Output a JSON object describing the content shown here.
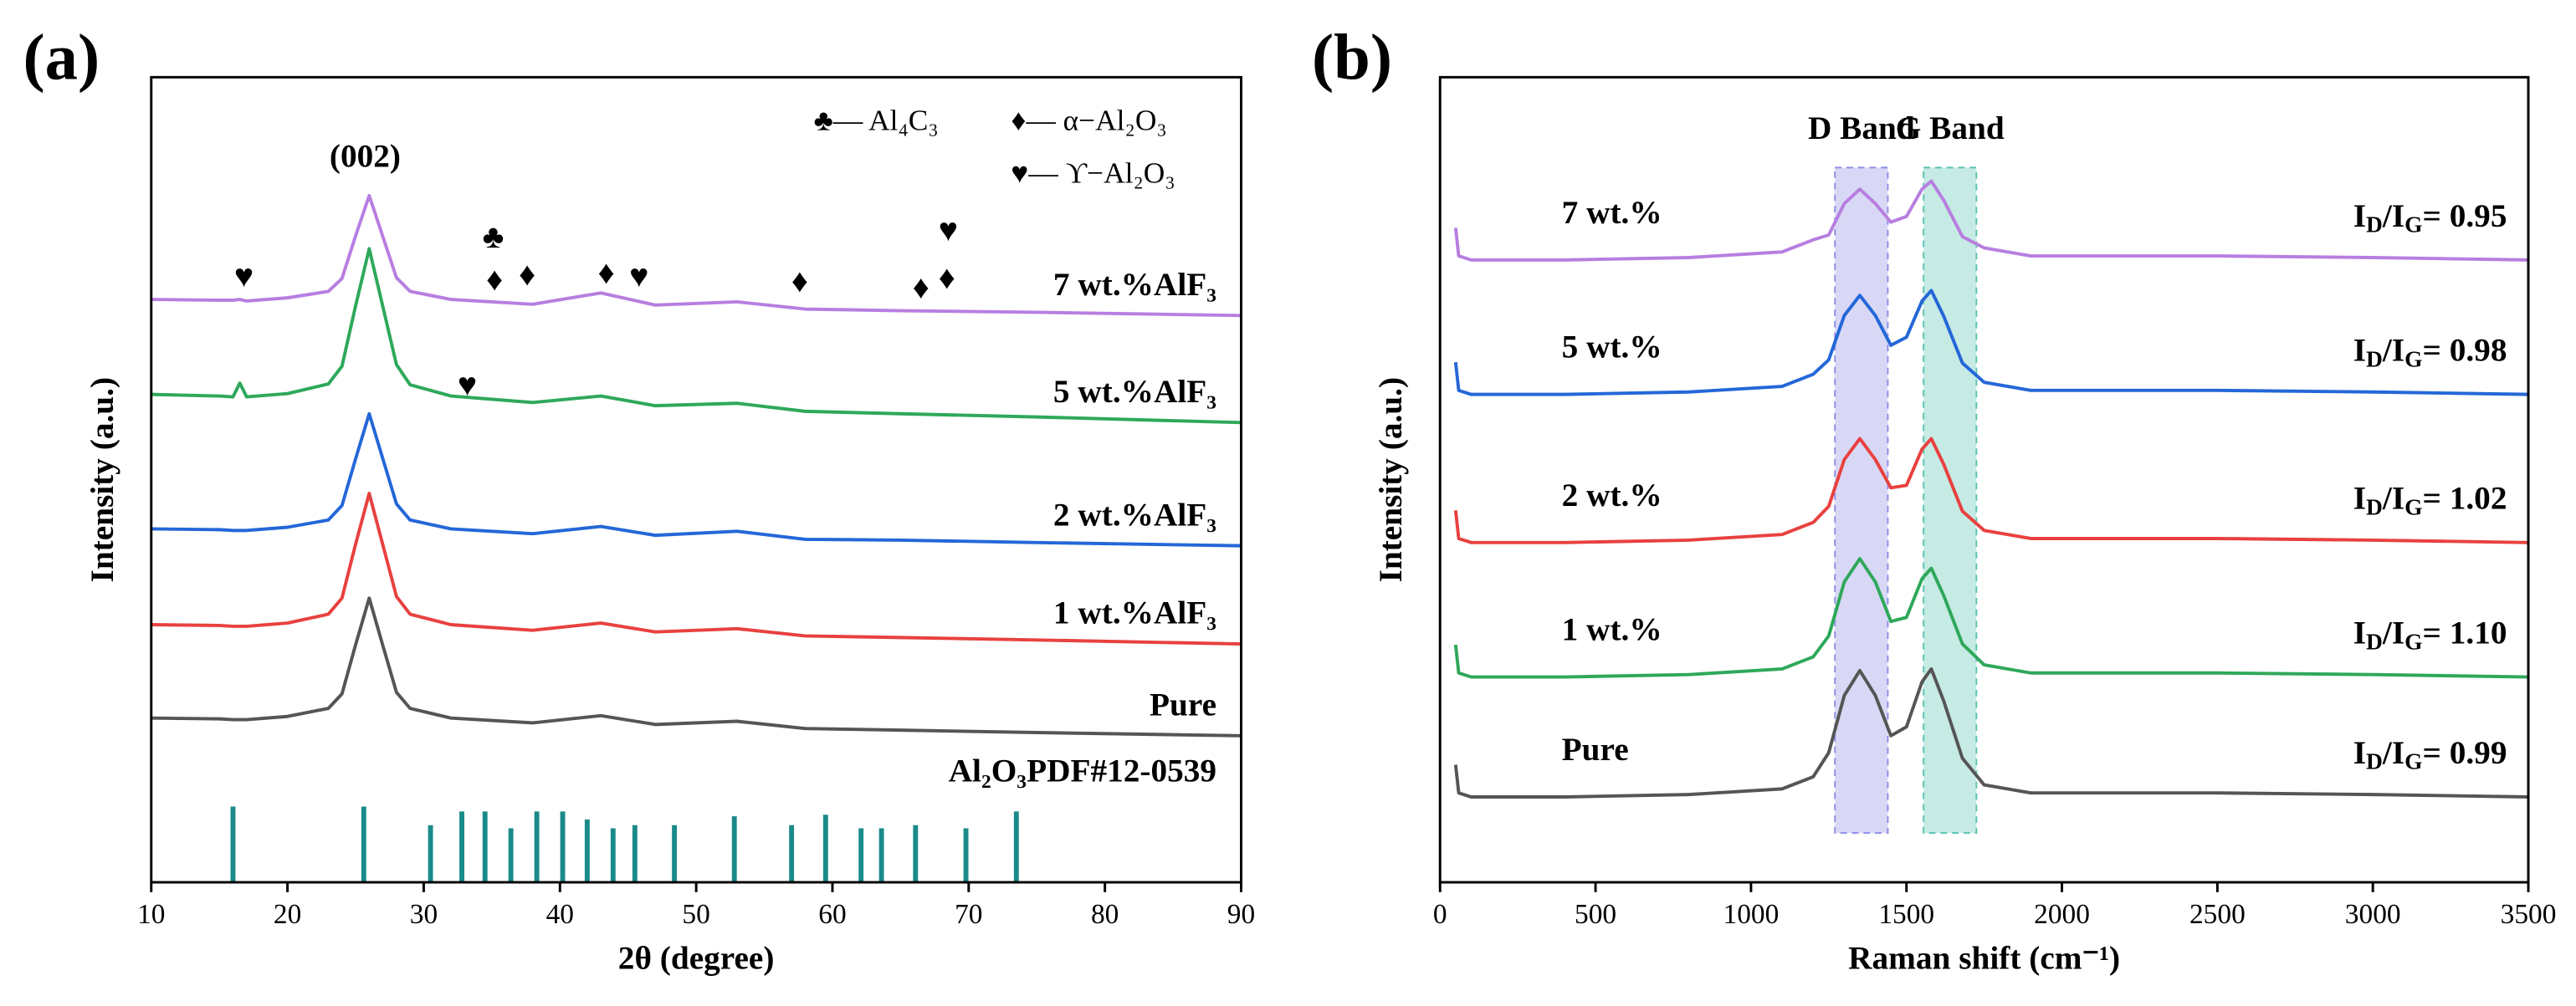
{
  "chart_data": [
    {
      "type": "line",
      "panel_label": "(a)",
      "xlabel": "2θ (degree)",
      "ylabel": "Intensity (a.u.)",
      "xlim": [
        10,
        90
      ],
      "xticks": [
        10,
        20,
        30,
        40,
        50,
        60,
        70,
        80,
        90
      ],
      "ylim": [
        0,
        100
      ],
      "x": [
        10,
        15,
        16,
        16.5,
        17,
        20,
        23,
        24,
        25,
        26,
        27,
        28,
        29,
        32,
        38,
        43,
        47,
        53,
        58,
        65,
        75,
        90
      ],
      "series": [
        {
          "name": "Pure",
          "color": "#555555",
          "values": [
            20.4,
            20.3,
            20.2,
            20.2,
            20.2,
            20.6,
            21.6,
            23.4,
            29.5,
            35.3,
            29.4,
            23.6,
            21.6,
            20.4,
            19.8,
            20.7,
            19.6,
            20.0,
            19.1,
            18.9,
            18.6,
            18.2
          ]
        },
        {
          "name": "1 wt.%AlF₃",
          "color": "#e8413f",
          "values": [
            32.0,
            31.9,
            31.8,
            31.8,
            31.8,
            32.2,
            33.3,
            35.3,
            42.0,
            48.3,
            41.9,
            35.5,
            33.3,
            32.0,
            31.3,
            32.2,
            31.1,
            31.5,
            30.6,
            30.4,
            30.1,
            29.6
          ]
        },
        {
          "name": "2 wt.%AlF₃",
          "color": "#2467d8",
          "values": [
            43.9,
            43.8,
            43.7,
            43.7,
            43.7,
            44.1,
            45.0,
            46.8,
            52.6,
            58.2,
            52.6,
            47.0,
            45.0,
            43.9,
            43.3,
            44.2,
            43.1,
            43.6,
            42.6,
            42.5,
            42.2,
            41.8
          ]
        },
        {
          "name": "5 wt.%AlF₃",
          "color": "#2ea85a",
          "values": [
            60.6,
            60.4,
            60.3,
            62.0,
            60.3,
            60.7,
            61.9,
            64.1,
            71.6,
            78.7,
            71.5,
            64.3,
            61.8,
            60.4,
            59.6,
            60.4,
            59.2,
            59.5,
            58.5,
            58.2,
            57.8,
            57.1
          ]
        },
        {
          "name": "7 wt.%AlF₃",
          "color": "#b77ee0",
          "values": [
            72.4,
            72.3,
            72.3,
            72.4,
            72.2,
            72.6,
            73.4,
            75.0,
            80.3,
            85.3,
            80.2,
            75.1,
            73.4,
            72.4,
            71.8,
            73.2,
            71.7,
            72.1,
            71.2,
            71.0,
            70.8,
            70.4
          ]
        }
      ],
      "reference": {
        "name": "Al₂O₃PDF#12-0539",
        "color": "#1a8a8a",
        "x": [
          16.0,
          25.6,
          30.5,
          32.8,
          34.5,
          36.4,
          38.3,
          40.2,
          42.0,
          43.9,
          45.5,
          48.4,
          52.8,
          57.0,
          59.5,
          62.1,
          63.6,
          66.1,
          69.8,
          73.5
        ],
        "values": [
          9.4,
          9.4,
          7.1,
          8.8,
          8.8,
          6.7,
          8.8,
          8.8,
          7.8,
          6.7,
          7.1,
          7.1,
          8.2,
          7.1,
          8.4,
          6.7,
          6.7,
          7.1,
          6.7,
          8.8
        ]
      },
      "peak_label": {
        "text": "(002)",
        "x": 25.7,
        "y": 89.8
      },
      "markers": [
        {
          "text": "♥",
          "x": 16.8,
          "y": 74.9
        },
        {
          "text": "♣",
          "x": 35.1,
          "y": 79.8
        },
        {
          "text": "♦",
          "x": 35.2,
          "y": 74.5
        },
        {
          "text": "♦",
          "x": 37.6,
          "y": 75.1
        },
        {
          "text": "♦",
          "x": 43.4,
          "y": 75.3
        },
        {
          "text": "♥",
          "x": 45.8,
          "y": 74.9
        },
        {
          "text": "♦",
          "x": 57.6,
          "y": 74.3
        },
        {
          "text": "♦",
          "x": 66.5,
          "y": 73.5
        },
        {
          "text": "♦",
          "x": 68.4,
          "y": 74.7
        },
        {
          "text": "♥",
          "x": 68.5,
          "y": 80.6
        },
        {
          "text": "♥",
          "x": 33.2,
          "y": 61.4
        }
      ],
      "phase_key": [
        "♣— Al₄C₃",
        "♦— α−Al₂O₃",
        "♥— ϒ−Al₂O₃"
      ]
    },
    {
      "type": "line",
      "panel_label": "(b)",
      "xlabel": "Raman shift (cm⁻¹)",
      "ylabel": "Intensity (a.u.)",
      "xlim": [
        0,
        3500
      ],
      "xticks": [
        0,
        500,
        1000,
        1500,
        2000,
        2500,
        3000,
        3500
      ],
      "ylim": [
        0,
        100
      ],
      "x": [
        50,
        60,
        100,
        400,
        800,
        1100,
        1200,
        1250,
        1300,
        1350,
        1400,
        1450,
        1500,
        1550,
        1580,
        1620,
        1680,
        1750,
        1900,
        2500,
        3000,
        3500
      ],
      "bands": [
        {
          "label": "D Band",
          "range": [
            1270,
            1440
          ],
          "color": "#8f8fe6"
        },
        {
          "label": "G Band",
          "range": [
            1555,
            1725
          ],
          "color": "#5cc4b2"
        }
      ],
      "series": [
        {
          "name": "Pure",
          "color": "#555555",
          "ratio_label": [
            "I",
            "D",
            "/I",
            "G",
            "= 0.99"
          ],
          "values": [
            14.6,
            11.1,
            10.6,
            10.6,
            10.9,
            11.6,
            13.1,
            16.1,
            23.2,
            26.3,
            23.2,
            18.2,
            19.3,
            24.9,
            26.5,
            22.5,
            15.4,
            12.1,
            11.1,
            11.1,
            10.9,
            10.6
          ]
        },
        {
          "name": "1 wt.%",
          "color": "#2ea85a",
          "ratio_label": [
            "I",
            "D",
            "/I",
            "G",
            "= 1.10"
          ],
          "values": [
            29.5,
            26.0,
            25.5,
            25.5,
            25.8,
            26.5,
            28.0,
            30.6,
            37.3,
            40.2,
            37.3,
            32.4,
            32.9,
            37.7,
            39.0,
            35.6,
            29.6,
            27.0,
            26.0,
            26.0,
            25.8,
            25.5
          ]
        },
        {
          "name": "2 wt.%",
          "color": "#e8413f",
          "ratio_label": [
            "I",
            "D",
            "/I",
            "G",
            "= 1.02"
          ],
          "values": [
            46.2,
            42.7,
            42.2,
            42.2,
            42.5,
            43.2,
            44.7,
            46.7,
            52.5,
            55.1,
            52.5,
            49.0,
            49.3,
            53.8,
            55.1,
            51.9,
            46.1,
            43.7,
            42.7,
            42.7,
            42.5,
            42.2
          ]
        },
        {
          "name": "5 wt.%",
          "color": "#2467d8",
          "ratio_label": [
            "I",
            "D",
            "/I",
            "G",
            "= 0.98"
          ],
          "values": [
            64.6,
            61.1,
            60.6,
            60.6,
            60.9,
            61.6,
            63.1,
            64.9,
            70.4,
            72.9,
            70.4,
            66.7,
            67.7,
            72.2,
            73.5,
            70.3,
            64.5,
            62.1,
            61.1,
            61.1,
            60.9,
            60.6
          ]
        },
        {
          "name": "7 wt.%",
          "color": "#b77ee0",
          "ratio_label": [
            "I",
            "D",
            "/I",
            "G",
            "= 0.95"
          ],
          "values": [
            81.3,
            77.8,
            77.3,
            77.3,
            77.6,
            78.3,
            79.8,
            80.4,
            84.3,
            86.1,
            84.3,
            82.0,
            82.7,
            86.1,
            87.1,
            84.7,
            80.2,
            78.8,
            77.8,
            77.8,
            77.6,
            77.3
          ]
        }
      ]
    }
  ]
}
